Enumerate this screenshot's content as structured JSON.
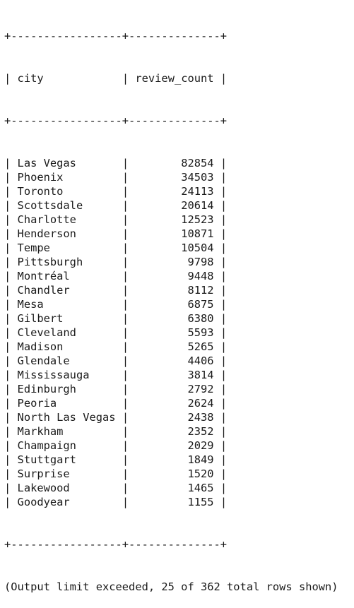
{
  "table": {
    "columns": [
      "city",
      "review_count"
    ],
    "rows": [
      {
        "city": "Las Vegas",
        "review_count": "82854"
      },
      {
        "city": "Phoenix",
        "review_count": "34503"
      },
      {
        "city": "Toronto",
        "review_count": "24113"
      },
      {
        "city": "Scottsdale",
        "review_count": "20614"
      },
      {
        "city": "Charlotte",
        "review_count": "12523"
      },
      {
        "city": "Henderson",
        "review_count": "10871"
      },
      {
        "city": "Tempe",
        "review_count": "10504"
      },
      {
        "city": "Pittsburgh",
        "review_count": "9798"
      },
      {
        "city": "Montréal",
        "review_count": "9448"
      },
      {
        "city": "Chandler",
        "review_count": "8112"
      },
      {
        "city": "Mesa",
        "review_count": "6875"
      },
      {
        "city": "Gilbert",
        "review_count": "6380"
      },
      {
        "city": "Cleveland",
        "review_count": "5593"
      },
      {
        "city": "Madison",
        "review_count": "5265"
      },
      {
        "city": "Glendale",
        "review_count": "4406"
      },
      {
        "city": "Mississauga",
        "review_count": "3814"
      },
      {
        "city": "Edinburgh",
        "review_count": "2792"
      },
      {
        "city": "Peoria",
        "review_count": "2624"
      },
      {
        "city": "North Las Vegas",
        "review_count": "2438"
      },
      {
        "city": "Markham",
        "review_count": "2352"
      },
      {
        "city": "Champaign",
        "review_count": "2029"
      },
      {
        "city": "Stuttgart",
        "review_count": "1849"
      },
      {
        "city": "Surprise",
        "review_count": "1520"
      },
      {
        "city": "Lakewood",
        "review_count": "1465"
      },
      {
        "city": "Goodyear",
        "review_count": "1155"
      }
    ]
  },
  "footer": {
    "message": "(Output limit exceeded, 25 of 362 total rows shown)"
  }
}
